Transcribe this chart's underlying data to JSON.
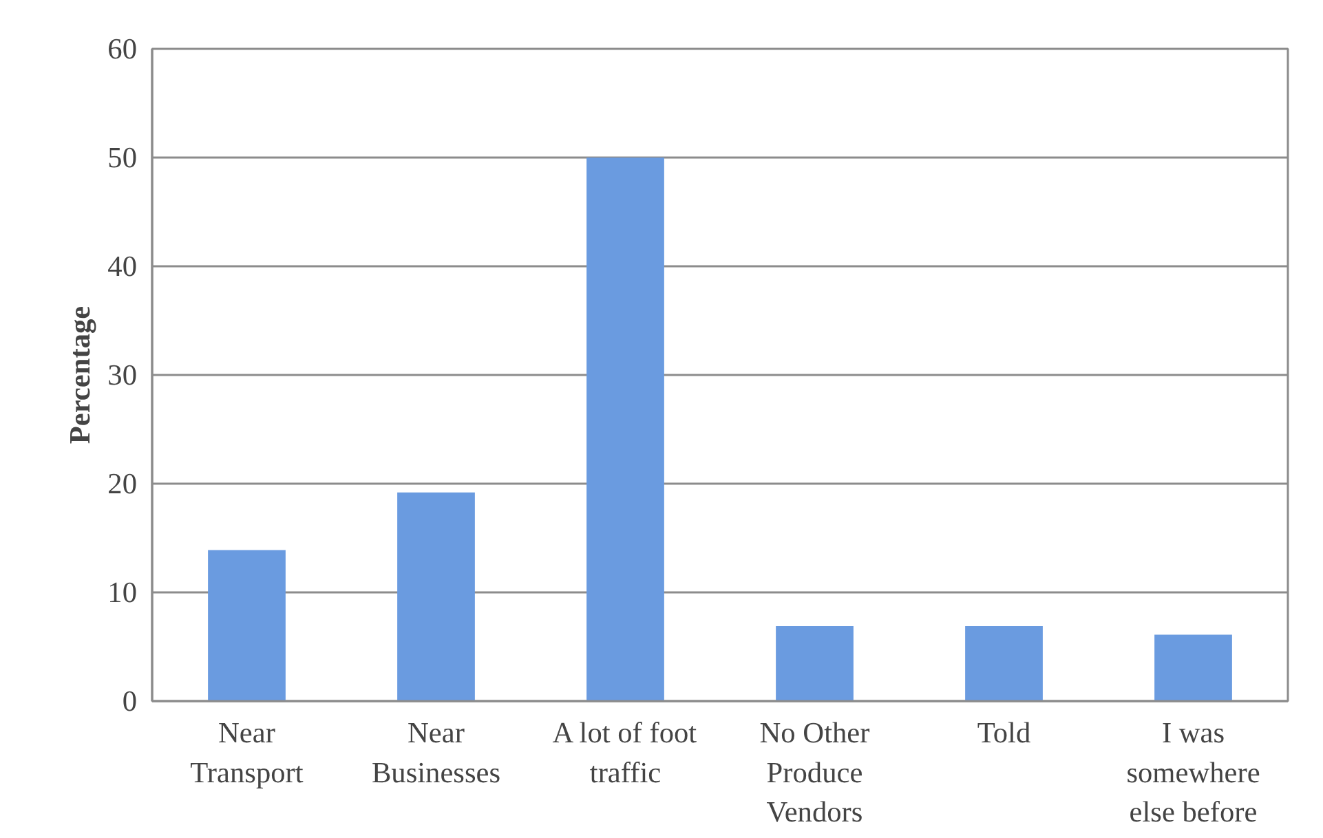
{
  "chart_data": {
    "type": "bar",
    "ylabel": "Percentage",
    "categories": [
      "Near Transport",
      "Near Businesses",
      "A lot of foot traffic",
      "No Other Produce Vendors",
      "Told",
      "I was somewhere else before"
    ],
    "values": [
      13.9,
      19.2,
      50,
      6.9,
      6.9,
      6.1
    ],
    "color": "#6a9be0",
    "ylim": [
      0,
      60
    ],
    "yticks": [
      0,
      10,
      20,
      30,
      40,
      50,
      60
    ],
    "grid": "y"
  }
}
